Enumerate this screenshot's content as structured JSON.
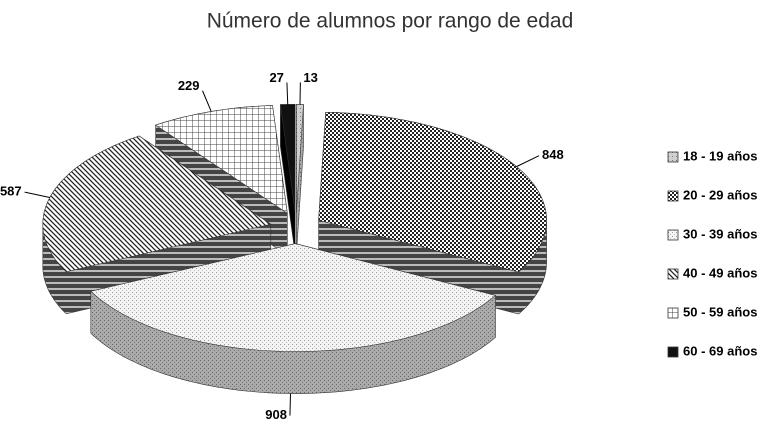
{
  "chart_data": {
    "type": "pie",
    "title": "Número de alumnos por rango de edad",
    "categories": [
      "18 - 19 años",
      "20 - 29 años",
      "30 - 39 años",
      "40 - 49 años",
      "50 - 59 años",
      "60 - 69 años"
    ],
    "values": [
      13,
      848,
      908,
      587,
      229,
      27
    ],
    "legend": "right"
  }
}
